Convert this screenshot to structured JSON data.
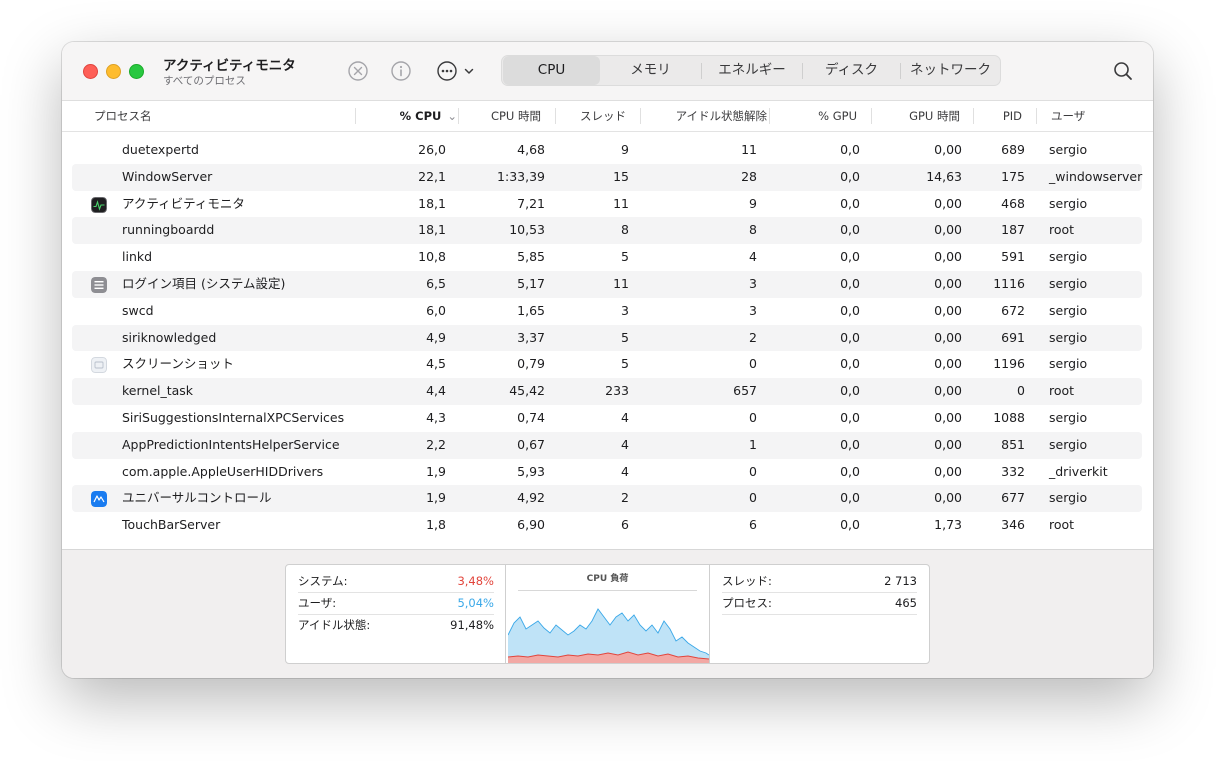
{
  "window": {
    "title": "アクティビティモニタ",
    "subtitle": "すべてのプロセス"
  },
  "toolbar": {
    "icons": [
      "stop-process-icon",
      "info-icon",
      "more-icon",
      "chevron-down-icon",
      "search-icon"
    ],
    "tabs": [
      {
        "label": "CPU",
        "active": true
      },
      {
        "label": "メモリ",
        "active": false
      },
      {
        "label": "エネルギー",
        "active": false
      },
      {
        "label": "ディスク",
        "active": false
      },
      {
        "label": "ネットワーク",
        "active": false
      }
    ]
  },
  "table": {
    "columns": [
      "プロセス名",
      "% CPU",
      "CPU 時間",
      "スレッド",
      "アイドル状態解除",
      "% GPU",
      "GPU 時間",
      "PID",
      "ユーザ"
    ],
    "sorted_column": "% CPU",
    "rows": [
      {
        "icon": "",
        "name": "duetexpertd",
        "cpu": "26,0",
        "time": "4,68",
        "threads": "9",
        "idle": "11",
        "gpu": "0,0",
        "gtime": "0,00",
        "pid": "689",
        "user": "sergio"
      },
      {
        "icon": "",
        "name": "WindowServer",
        "cpu": "22,1",
        "time": "1:33,39",
        "threads": "15",
        "idle": "28",
        "gpu": "0,0",
        "gtime": "14,63",
        "pid": "175",
        "user": "_windowserver"
      },
      {
        "icon": "activity-monitor-icon",
        "name": "アクティビティモニタ",
        "cpu": "18,1",
        "time": "7,21",
        "threads": "11",
        "idle": "9",
        "gpu": "0,0",
        "gtime": "0,00",
        "pid": "468",
        "user": "sergio"
      },
      {
        "icon": "",
        "name": "runningboardd",
        "cpu": "18,1",
        "time": "10,53",
        "threads": "8",
        "idle": "8",
        "gpu": "0,0",
        "gtime": "0,00",
        "pid": "187",
        "user": "root"
      },
      {
        "icon": "",
        "name": "linkd",
        "cpu": "10,8",
        "time": "5,85",
        "threads": "5",
        "idle": "4",
        "gpu": "0,0",
        "gtime": "0,00",
        "pid": "591",
        "user": "sergio"
      },
      {
        "icon": "login-items-icon",
        "name": "ログイン項目 (システム設定)",
        "cpu": "6,5",
        "time": "5,17",
        "threads": "11",
        "idle": "3",
        "gpu": "0,0",
        "gtime": "0,00",
        "pid": "1116",
        "user": "sergio"
      },
      {
        "icon": "",
        "name": "swcd",
        "cpu": "6,0",
        "time": "1,65",
        "threads": "3",
        "idle": "3",
        "gpu": "0,0",
        "gtime": "0,00",
        "pid": "672",
        "user": "sergio"
      },
      {
        "icon": "",
        "name": "siriknowledged",
        "cpu": "4,9",
        "time": "3,37",
        "threads": "5",
        "idle": "2",
        "gpu": "0,0",
        "gtime": "0,00",
        "pid": "691",
        "user": "sergio"
      },
      {
        "icon": "screenshot-icon",
        "name": "スクリーンショット",
        "cpu": "4,5",
        "time": "0,79",
        "threads": "5",
        "idle": "0",
        "gpu": "0,0",
        "gtime": "0,00",
        "pid": "1196",
        "user": "sergio"
      },
      {
        "icon": "",
        "name": "kernel_task",
        "cpu": "4,4",
        "time": "45,42",
        "threads": "233",
        "idle": "657",
        "gpu": "0,0",
        "gtime": "0,00",
        "pid": "0",
        "user": "root"
      },
      {
        "icon": "",
        "name": "SiriSuggestionsInternalXPCServices",
        "cpu": "4,3",
        "time": "0,74",
        "threads": "4",
        "idle": "0",
        "gpu": "0,0",
        "gtime": "0,00",
        "pid": "1088",
        "user": "sergio"
      },
      {
        "icon": "",
        "name": "AppPredictionIntentsHelperService",
        "cpu": "2,2",
        "time": "0,67",
        "threads": "4",
        "idle": "1",
        "gpu": "0,0",
        "gtime": "0,00",
        "pid": "851",
        "user": "sergio"
      },
      {
        "icon": "",
        "name": "com.apple.AppleUserHIDDrivers",
        "cpu": "1,9",
        "time": "5,93",
        "threads": "4",
        "idle": "0",
        "gpu": "0,0",
        "gtime": "0,00",
        "pid": "332",
        "user": "_driverkit"
      },
      {
        "icon": "universal-control-icon",
        "name": "ユニバーサルコントロール",
        "cpu": "1,9",
        "time": "4,92",
        "threads": "2",
        "idle": "0",
        "gpu": "0,0",
        "gtime": "0,00",
        "pid": "677",
        "user": "sergio"
      },
      {
        "icon": "",
        "name": "TouchBarServer",
        "cpu": "1,8",
        "time": "6,90",
        "threads": "6",
        "idle": "6",
        "gpu": "0,0",
        "gtime": "1,73",
        "pid": "346",
        "user": "root"
      }
    ]
  },
  "stats": {
    "system_label": "システム:",
    "system_value": "3,48%",
    "user_label": "ユーザ:",
    "user_value": "5,04%",
    "idle_label": "アイドル状態:",
    "idle_value": "91,48%",
    "graph_title": "CPU 負荷",
    "threads_label": "スレッド:",
    "threads_value": "2 713",
    "processes_label": "プロセス:",
    "processes_value": "465",
    "colors": {
      "system": "#e2453c",
      "user": "#3aa8e8",
      "user_fill": "#bfe3f7",
      "system_fill": "#f2a8a4"
    }
  }
}
